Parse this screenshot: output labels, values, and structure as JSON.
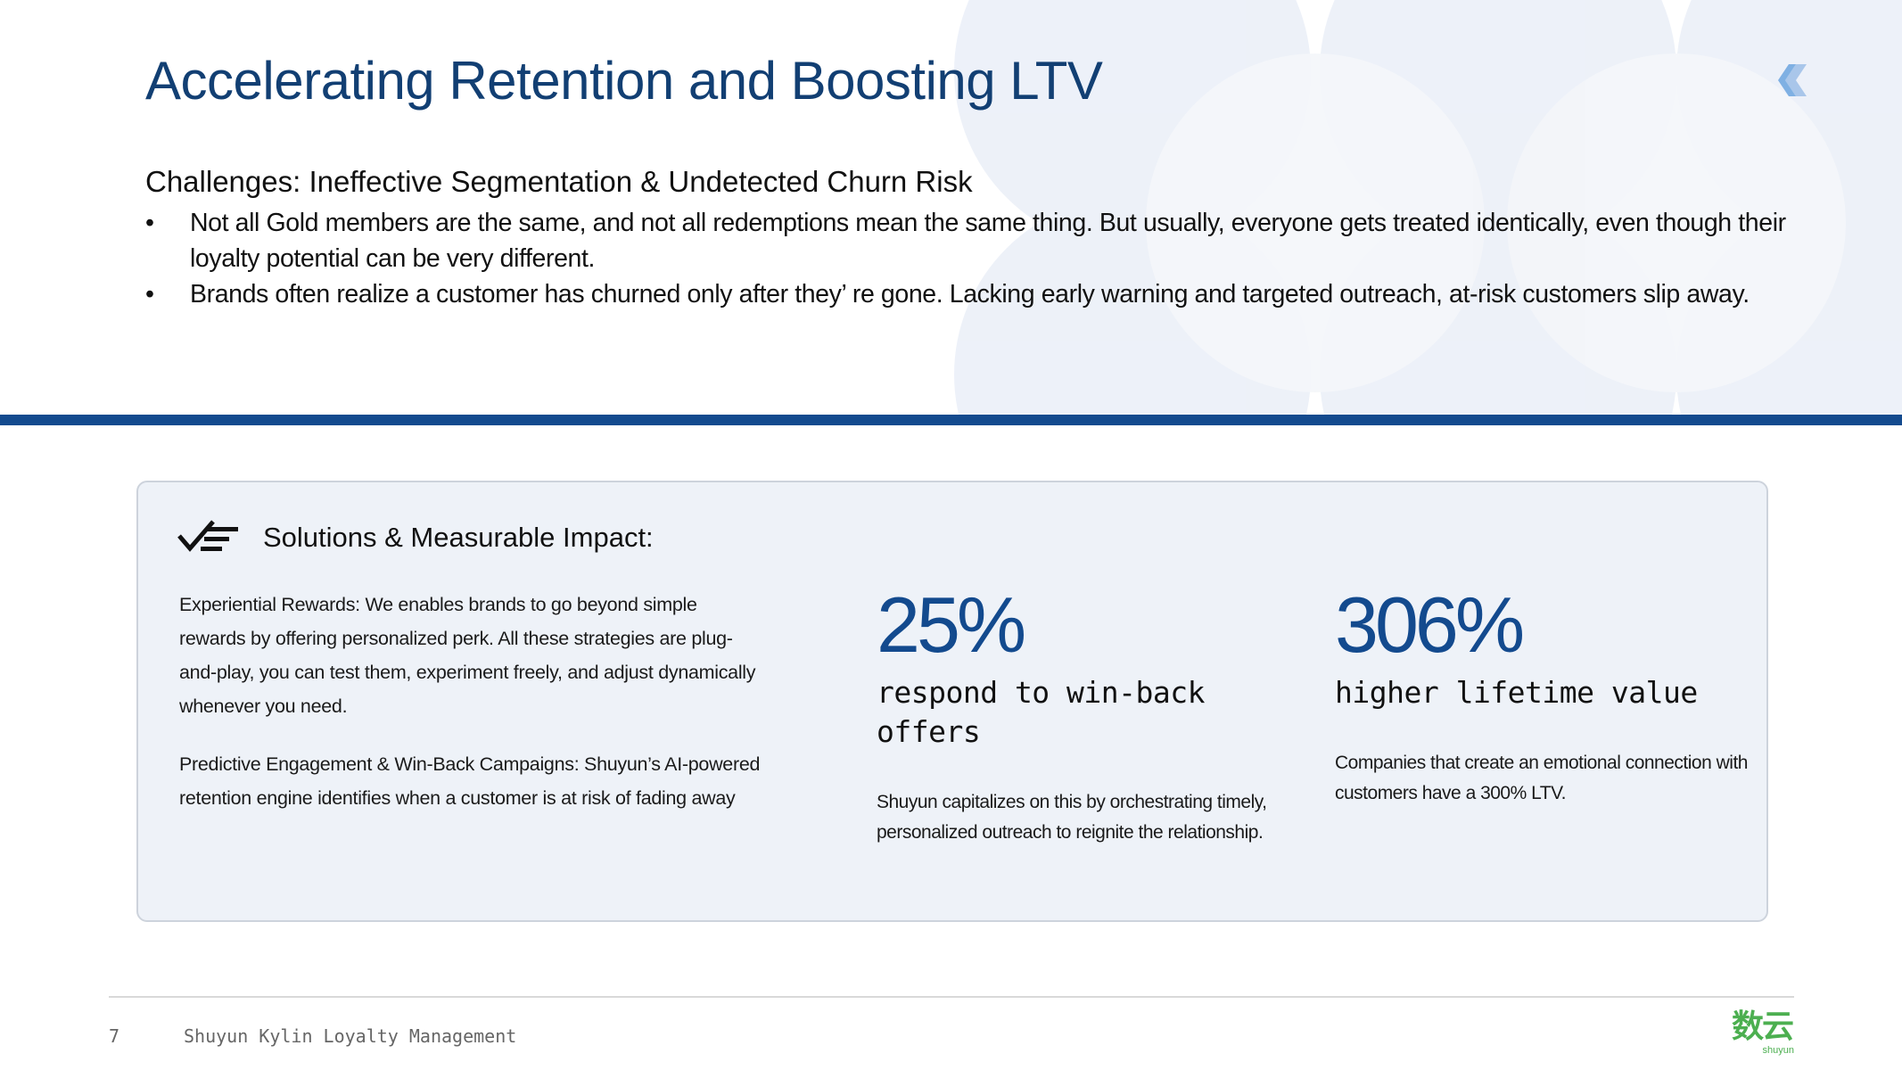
{
  "slide": {
    "title": "Accelerating Retention and Boosting LTV",
    "challenges_heading": "Challenges: Ineffective Segmentation & Undetected Churn Risk",
    "bullets": [
      "Not all Gold members are the same, and not all redemptions mean the same thing. But usually, everyone gets treated identically, even though their loyalty potential can be very different.",
      "Brands often realize a customer has churned only after they’   re gone. Lacking early warning and targeted outreach, at-risk customers slip away."
    ],
    "bullet_marker": "•"
  },
  "panel": {
    "title": "Solutions & Measurable Impact:",
    "paragraphs": [
      "Experiential Rewards: We enables brands to go beyond simple rewards by offering personalized perk. All these strategies are plug-and-play, you can test them, experiment freely, and adjust dynamically whenever you need.",
      "Predictive Engagement & Win-Back Campaigns: Shuyun’s AI-powered retention engine identifies when a customer is at risk of fading away"
    ],
    "stats": [
      {
        "value": "25%",
        "label": "respond to win-back offers",
        "description": "Shuyun capitalizes on this by orchestrating timely, personalized outreach to reignite the relationship."
      },
      {
        "value": "306%",
        "label": "higher lifetime value",
        "description": "Companies that create an emotional connection with customers have a 300% LTV."
      }
    ]
  },
  "footer": {
    "page_number": "7",
    "text": "Shuyun Kylin Loyalty Management",
    "brand_cn": "数云",
    "brand_en": "shuyun"
  },
  "colors": {
    "title": "#123f73",
    "accent_bar": "#134a8e",
    "panel_bg": "#eef2f8",
    "brand_green": "#4caf50"
  },
  "icons": {
    "panel_icon": "checklist-icon",
    "logo": "kylin-logo-icon"
  }
}
